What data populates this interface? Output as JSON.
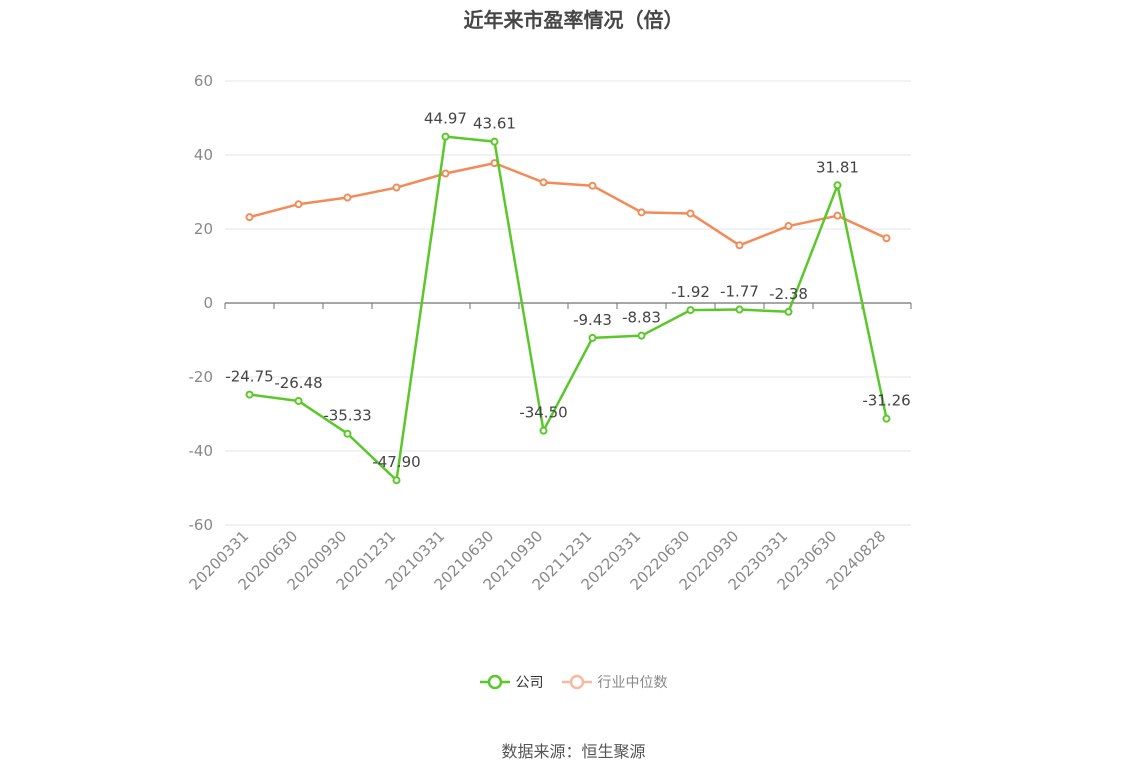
{
  "chart_data": {
    "type": "line",
    "title": "近年来市盈率情况（倍）",
    "categories": [
      "20200331",
      "20200630",
      "20200930",
      "20201231",
      "20210331",
      "20210630",
      "20210930",
      "20211231",
      "20220331",
      "20220630",
      "20220930",
      "20230331",
      "20230630",
      "20240828"
    ],
    "series": [
      {
        "name": "公司",
        "color": "#5ac829",
        "labeled": true,
        "values": [
          -24.75,
          -26.48,
          -35.33,
          -47.9,
          44.97,
          43.61,
          -34.5,
          -9.43,
          -8.83,
          -1.92,
          -1.77,
          -2.38,
          31.81,
          -31.26
        ]
      },
      {
        "name": "行业中位数",
        "color": "#f28b57",
        "labeled": false,
        "values": [
          23.2,
          26.7,
          28.5,
          31.2,
          35.0,
          37.8,
          32.6,
          31.7,
          24.5,
          24.2,
          15.6,
          20.8,
          23.6,
          17.5
        ]
      }
    ],
    "ylim": [
      -60,
      60
    ],
    "yticks": [
      60,
      40,
      20,
      0,
      -20,
      -40,
      -60
    ],
    "grid": true,
    "legend_position": "bottom"
  },
  "legend": {
    "company": "公司",
    "industry": "行业中位数"
  },
  "source": "数据来源：恒生聚源"
}
